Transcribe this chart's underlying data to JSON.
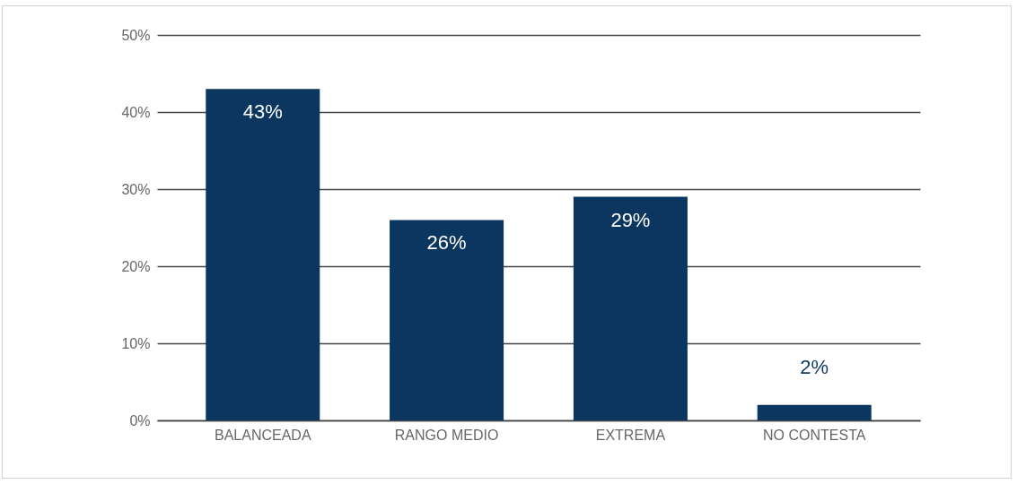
{
  "chart_data": {
    "type": "bar",
    "categories": [
      "BALANCEADA",
      "RANGO MEDIO",
      "EXTREMA",
      "NO CONTESTA"
    ],
    "values": [
      43,
      26,
      29,
      2
    ],
    "value_labels": [
      "43%",
      "26%",
      "29%",
      "2%"
    ],
    "color": "#0b365f",
    "ylim": [
      0,
      50
    ],
    "yticks": [
      {
        "value": 0,
        "label": "0%"
      },
      {
        "value": 10,
        "label": "10%"
      },
      {
        "value": 20,
        "label": "20%"
      },
      {
        "value": 30,
        "label": "30%"
      },
      {
        "value": 40,
        "label": "40%"
      },
      {
        "value": 50,
        "label": "50%"
      }
    ],
    "grid": "y"
  }
}
